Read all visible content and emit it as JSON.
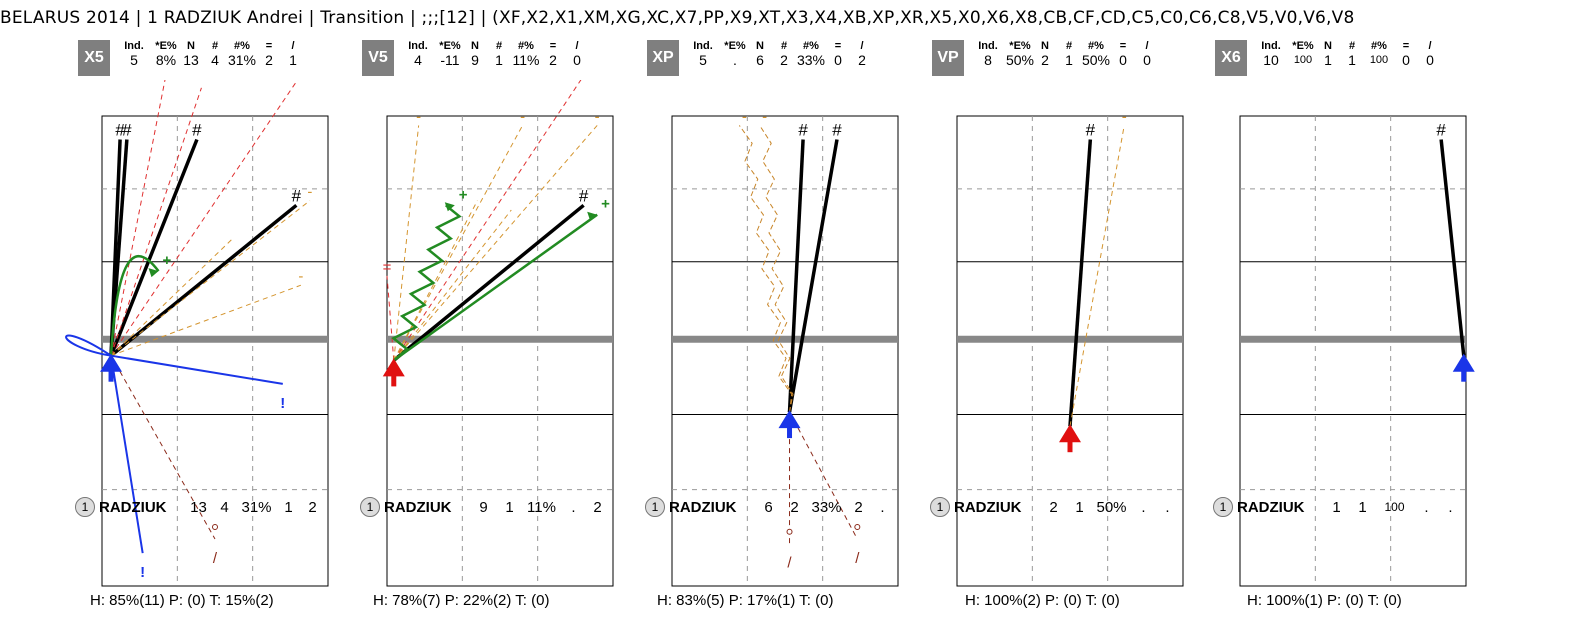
{
  "header": {
    "text": "BELARUS 2014   |   1 RADZIUK Andrei   |   Transition   |   ;;;[12]   |   (XF,X2,X1,XM,XG,XC,X7,PP,X9,XT,X3,X4,XB,XP,XR,X5,X0,X6,X8,CB,CF,CD,C5,C0,C6,C8,V5,V0,V6,V8"
  },
  "stat_headers": [
    "Ind.",
    "*E%",
    "N",
    "#",
    "#%",
    "=",
    "/"
  ],
  "chart_data": [
    {
      "type": "line",
      "code": "X5",
      "stats": [
        "5",
        "8%",
        "13",
        "4",
        "31%",
        "2",
        "1"
      ],
      "player_row": {
        "marker": "1",
        "name": "RADZIUK",
        "values": [
          "13",
          "4",
          "31%",
          "1",
          "2"
        ]
      },
      "footer": "H: 85%(11)  P: (0)  T: 15%(2)",
      "origin": {
        "x": 0.04,
        "y": 0.51
      },
      "origin_arrow": "blue",
      "lines": [
        {
          "kind": "kill",
          "x2": 0.08,
          "y2": 0.05,
          "label": "#"
        },
        {
          "kind": "kill",
          "x2": 0.11,
          "y2": 0.05,
          "label": "#"
        },
        {
          "kind": "kill",
          "x2": 0.42,
          "y2": 0.05,
          "label": "#"
        },
        {
          "kind": "kill",
          "x2": 0.86,
          "y2": 0.19,
          "label": "#"
        },
        {
          "kind": "err",
          "x2": 0.28,
          "y2": -0.08,
          "label": "="
        },
        {
          "kind": "err",
          "x2": 0.87,
          "y2": -0.08,
          "label": "="
        },
        {
          "kind": "err",
          "x2": 0.44,
          "y2": -0.06
        },
        {
          "kind": "dash",
          "x2": 0.92,
          "y2": 0.18,
          "label": "-"
        },
        {
          "kind": "dash",
          "x2": 0.88,
          "y2": 0.36,
          "label": "-"
        },
        {
          "kind": "dash",
          "x2": 0.58,
          "y2": 0.26
        },
        {
          "kind": "blue",
          "x2": 0.8,
          "y2": 0.57,
          "label": "!"
        },
        {
          "kind": "blue",
          "x2": 0.18,
          "y2": 0.93,
          "label": "!"
        },
        {
          "kind": "brown",
          "x2": 0.5,
          "y2": 0.9,
          "label": "/"
        }
      ],
      "green": [
        {
          "style": "curve",
          "x2": 0.25,
          "y2": 0.33,
          "label": "+"
        }
      ],
      "loop": true
    },
    {
      "type": "line",
      "code": "V5",
      "stats": [
        "4",
        "-11",
        "9",
        "1",
        "11%",
        "2",
        "0"
      ],
      "player_row": {
        "marker": "1",
        "name": "RADZIUK",
        "values": [
          "9",
          "1",
          "11%",
          ".",
          "2"
        ]
      },
      "footer": "H: 78%(7)  P: 22%(2)  T: (0)",
      "origin": {
        "x": 0.03,
        "y": 0.52
      },
      "origin_arrow": "red",
      "lines": [
        {
          "kind": "kill",
          "x2": 0.87,
          "y2": 0.19,
          "label": "#"
        },
        {
          "kind": "err",
          "x2": 0.89,
          "y2": -0.1,
          "label": "="
        },
        {
          "kind": "err",
          "x2": 0.0,
          "y2": 0.34,
          "label": "="
        },
        {
          "kind": "dash",
          "x2": 0.14,
          "y2": 0.02,
          "label": "-"
        },
        {
          "kind": "dash",
          "x2": 0.6,
          "y2": 0.02,
          "label": "-"
        },
        {
          "kind": "dash",
          "x2": 0.93,
          "y2": 0.02,
          "label": "-"
        },
        {
          "kind": "dash",
          "x2": 0.4,
          "y2": 0.18
        },
        {
          "kind": "dash",
          "x2": 0.55,
          "y2": 0.2
        }
      ],
      "green": [
        {
          "style": "zigzag",
          "x2": 0.3,
          "y2": 0.19,
          "label": "+"
        },
        {
          "style": "arrow",
          "x2": 0.93,
          "y2": 0.21,
          "label": "+"
        }
      ]
    },
    {
      "type": "line",
      "code": "XP",
      "stats": [
        "5",
        ".",
        "6",
        "2",
        "33%",
        "0",
        "2"
      ],
      "player_row": {
        "marker": "1",
        "name": "RADZIUK",
        "values": [
          "6",
          "2",
          "33%",
          "2",
          "."
        ]
      },
      "footer": "H: 83%(5)  P: 17%(1)  T: (0)",
      "origin": {
        "x": 0.52,
        "y": 0.63
      },
      "origin_arrow": "blue",
      "lines": [
        {
          "kind": "kill",
          "x2": 0.58,
          "y2": 0.05,
          "label": "#"
        },
        {
          "kind": "kill",
          "x2": 0.73,
          "y2": 0.05,
          "label": "#"
        },
        {
          "kind": "zigdash",
          "x2": 0.32,
          "y2": 0.02,
          "label": "-"
        },
        {
          "kind": "zigdash",
          "x2": 0.41,
          "y2": 0.02,
          "label": "-"
        },
        {
          "kind": "brown",
          "x2": 0.52,
          "y2": 0.91,
          "label": "/"
        },
        {
          "kind": "brown",
          "x2": 0.82,
          "y2": 0.9,
          "label": "/"
        }
      ],
      "green": []
    },
    {
      "type": "line",
      "code": "VP",
      "stats": [
        "8",
        "50%",
        "2",
        "1",
        "50%",
        "0",
        "0"
      ],
      "player_row": {
        "marker": "1",
        "name": "RADZIUK",
        "values": [
          "2",
          "1",
          "50%",
          ".",
          "."
        ]
      },
      "footer": "H: 100%(2)  P: (0)  T: (0)",
      "origin": {
        "x": 0.5,
        "y": 0.66
      },
      "origin_arrow": "red",
      "lines": [
        {
          "kind": "kill",
          "x2": 0.59,
          "y2": 0.05,
          "label": "#"
        },
        {
          "kind": "dash",
          "x2": 0.74,
          "y2": 0.02,
          "label": "-"
        }
      ],
      "green": []
    },
    {
      "type": "line",
      "code": "X6",
      "stats": [
        "10",
        "100",
        "1",
        "1",
        "100",
        "0",
        "0"
      ],
      "player_row": {
        "marker": "1",
        "name": "RADZIUK",
        "values": [
          "1",
          "1",
          "100",
          ".",
          "."
        ]
      },
      "footer": "H: 100%(1)  P: (0)  T: (0)",
      "origin": {
        "x": 0.99,
        "y": 0.51
      },
      "origin_arrow": "blue",
      "lines": [
        {
          "kind": "kill",
          "x2": 0.89,
          "y2": 0.05,
          "label": "#"
        }
      ],
      "green": []
    }
  ]
}
